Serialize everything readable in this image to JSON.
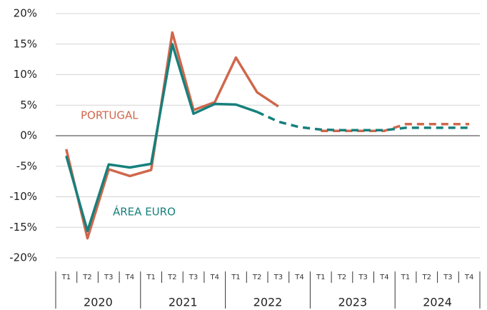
{
  "chart_data": {
    "type": "line",
    "categories": [
      "T1",
      "T2",
      "T3",
      "T4",
      "T1",
      "T2",
      "T3",
      "T4",
      "T1",
      "T2",
      "T3",
      "T4",
      "T1",
      "T2",
      "T3",
      "T4",
      "T1",
      "T2",
      "T3",
      "T4"
    ],
    "years": [
      "2020",
      "2021",
      "2022",
      "2023",
      "2024"
    ],
    "series": [
      {
        "name": "PORTUGAL",
        "color": "#d0674c",
        "dash_from": 12,
        "values": [
          -2.2,
          -16.8,
          -5.5,
          -6.6,
          -5.6,
          16.9,
          4.2,
          5.5,
          12.8,
          7.1,
          4.8,
          null,
          0.8,
          0.8,
          0.8,
          0.8,
          1.9,
          1.9,
          1.9,
          1.9
        ]
      },
      {
        "name": "ÁREA EURO",
        "color": "#16807c",
        "dash_from": 10,
        "values": [
          -3.3,
          -15.6,
          -4.7,
          -5.2,
          -4.6,
          15.0,
          3.6,
          5.2,
          5.1,
          3.9,
          2.3,
          1.4,
          1.0,
          0.9,
          0.9,
          0.9,
          1.3,
          1.3,
          1.3,
          1.3
        ]
      }
    ],
    "ylim": [
      -20,
      20
    ],
    "yticks": [
      {
        "value": -20,
        "label": "-20%"
      },
      {
        "value": -15,
        "label": "-15%"
      },
      {
        "value": -10,
        "label": "-10%"
      },
      {
        "value": -5,
        "label": "-5%"
      },
      {
        "value": 0,
        "label": "0%"
      },
      {
        "value": 5,
        "label": "5%"
      },
      {
        "value": 10,
        "label": "10%"
      },
      {
        "value": 15,
        "label": "15%"
      },
      {
        "value": 20,
        "label": "20%"
      }
    ],
    "grid": true
  }
}
